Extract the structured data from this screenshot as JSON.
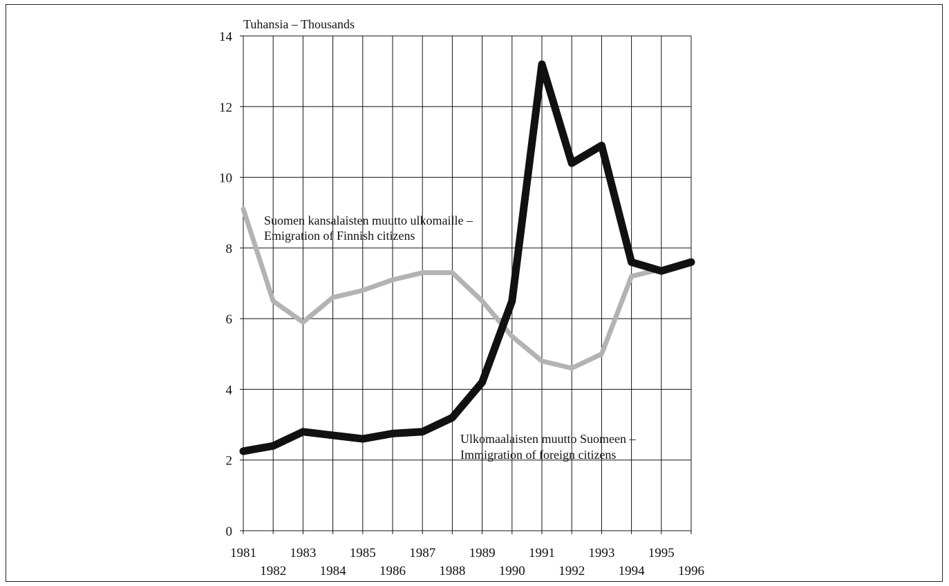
{
  "chart_data": {
    "type": "line",
    "unit_label": "Tuhansia – Thousands",
    "x": [
      1981,
      1982,
      1983,
      1984,
      1985,
      1986,
      1987,
      1988,
      1989,
      1990,
      1991,
      1992,
      1993,
      1994,
      1995,
      1996
    ],
    "x_tick_labels_top_row": [
      "1981",
      "1983",
      "1985",
      "1987",
      "1989",
      "1991",
      "1993",
      "1995"
    ],
    "x_tick_labels_bottom_row": [
      "1982",
      "1984",
      "1986",
      "1988",
      "1990",
      "1992",
      "1994",
      "1996"
    ],
    "y_ticks": [
      "0",
      "2",
      "4",
      "6",
      "8",
      "10",
      "12",
      "14"
    ],
    "ylim": [
      0,
      14
    ],
    "grid": true,
    "series": [
      {
        "name_line1": "Suomen kansalaisten muutto ulkomaille –",
        "name_line2": "Emigration of Finnish citizens",
        "color": "#b3b3b3",
        "values": [
          9.1,
          6.5,
          5.9,
          6.6,
          6.8,
          7.1,
          7.3,
          7.3,
          6.5,
          5.5,
          4.8,
          4.6,
          5.0,
          7.2,
          7.4,
          7.6
        ]
      },
      {
        "name_line1": "Ulkomaalaisten muutto Suomeen –",
        "name_line2": "Immigration of foreign citizens",
        "color": "#111111",
        "values": [
          2.25,
          2.4,
          2.8,
          2.7,
          2.6,
          2.75,
          2.8,
          3.2,
          4.2,
          6.5,
          13.2,
          10.4,
          10.9,
          7.6,
          7.35,
          7.6
        ]
      }
    ]
  }
}
